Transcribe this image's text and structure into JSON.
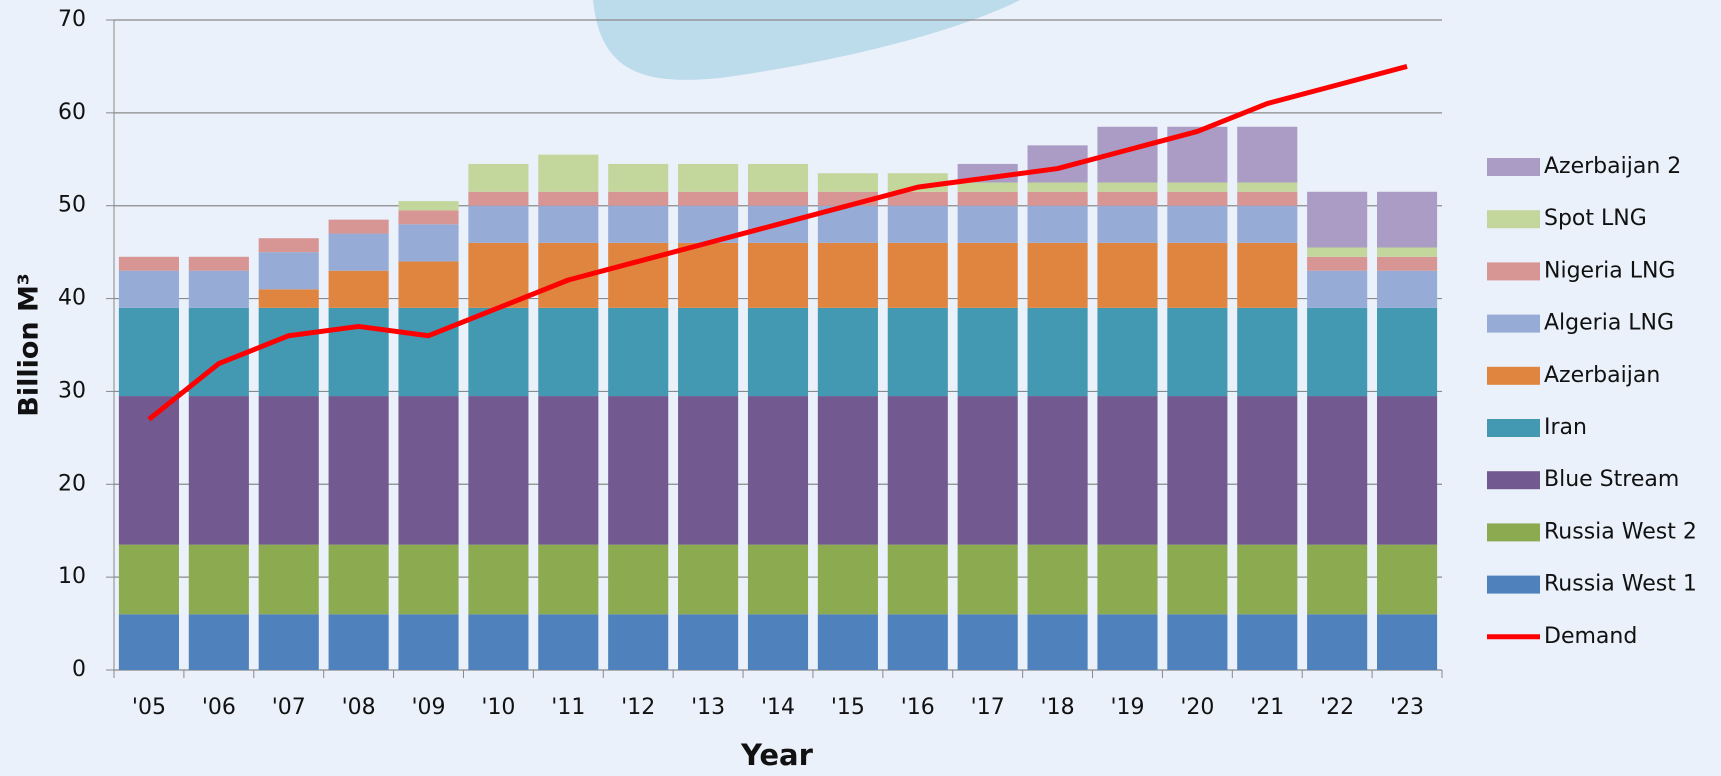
{
  "chart_data": {
    "type": "bar",
    "stacked": true,
    "x_label": "Year",
    "y_label": "Billion M³",
    "categories": [
      "'05",
      "'06",
      "'07",
      "'08",
      "'09",
      "'10",
      "'11",
      "'12",
      "'13",
      "'14",
      "'15",
      "'16",
      "'17",
      "'18",
      "'19",
      "'20",
      "'21",
      "'22",
      "'23"
    ],
    "series": [
      {
        "name": "Russia West 1",
        "color": "#4f81bd",
        "values": [
          6,
          6,
          6,
          6,
          6,
          6,
          6,
          6,
          6,
          6,
          6,
          6,
          6,
          6,
          6,
          6,
          6,
          6,
          6
        ]
      },
      {
        "name": "Russia West 2",
        "color": "#8caa4f",
        "values": [
          7.5,
          7.5,
          7.5,
          7.5,
          7.5,
          7.5,
          7.5,
          7.5,
          7.5,
          7.5,
          7.5,
          7.5,
          7.5,
          7.5,
          7.5,
          7.5,
          7.5,
          7.5,
          7.5
        ]
      },
      {
        "name": "Blue Stream",
        "color": "#725a91",
        "values": [
          16,
          16,
          16,
          16,
          16,
          16,
          16,
          16,
          16,
          16,
          16,
          16,
          16,
          16,
          16,
          16,
          16,
          16,
          16
        ]
      },
      {
        "name": "Iran",
        "color": "#4499b2",
        "values": [
          9.5,
          9.5,
          9.5,
          9.5,
          9.5,
          9.5,
          9.5,
          9.5,
          9.5,
          9.5,
          9.5,
          9.5,
          9.5,
          9.5,
          9.5,
          9.5,
          9.5,
          9.5,
          9.5
        ]
      },
      {
        "name": "Azerbaijan",
        "color": "#e0853f",
        "values": [
          0,
          0,
          2,
          4,
          5,
          7,
          7,
          7,
          7,
          7,
          7,
          7,
          7,
          7,
          7,
          7,
          7,
          0,
          0
        ]
      },
      {
        "name": "Algeria LNG",
        "color": "#96acd7",
        "values": [
          4,
          4,
          4,
          4,
          4,
          4,
          4,
          4,
          4,
          4,
          4,
          4,
          4,
          4,
          4,
          4,
          4,
          4,
          4
        ]
      },
      {
        "name": "Nigeria LNG",
        "color": "#d79594",
        "values": [
          1.5,
          1.5,
          1.5,
          1.5,
          1.5,
          1.5,
          1.5,
          1.5,
          1.5,
          1.5,
          1.5,
          1.5,
          1.5,
          1.5,
          1.5,
          1.5,
          1.5,
          1.5,
          1.5
        ]
      },
      {
        "name": "Spot LNG",
        "color": "#c3d79c",
        "values": [
          0,
          0,
          0,
          0,
          1,
          3,
          4,
          3,
          3,
          3,
          2,
          2,
          1,
          1,
          1,
          1,
          1,
          1,
          1
        ]
      },
      {
        "name": "Azerbaijan 2",
        "color": "#aa9cc4",
        "values": [
          0,
          0,
          0,
          0,
          0,
          0,
          0,
          0,
          0,
          0,
          0,
          0,
          2,
          4,
          6,
          6,
          6,
          6,
          6
        ]
      },
      {
        "name": "Demand",
        "color": "#ff0000",
        "type": "line",
        "values": [
          27,
          33,
          36,
          37,
          36,
          39,
          42,
          44,
          46,
          48,
          50,
          52,
          53,
          54,
          56,
          58,
          61,
          63,
          65
        ]
      }
    ],
    "ylim": [
      0,
      70
    ],
    "yticks": [
      0,
      10,
      20,
      30,
      40,
      50,
      60,
      70
    ],
    "grid": true,
    "legend": "right"
  }
}
